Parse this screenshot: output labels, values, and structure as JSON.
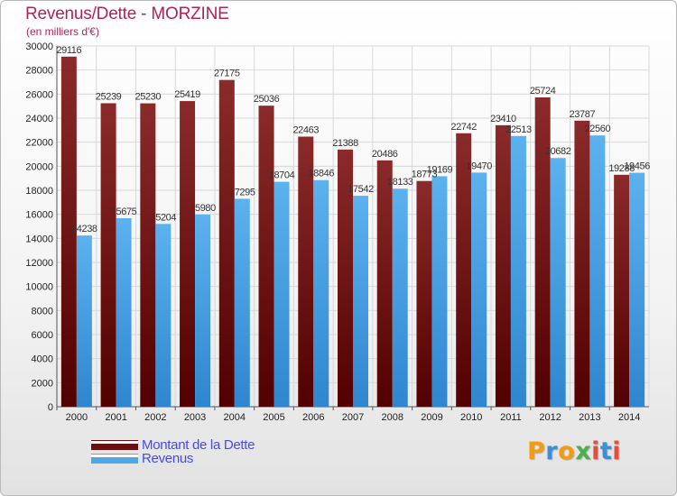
{
  "chart_data": {
    "type": "bar",
    "title": "Revenus/Dette - MORZINE",
    "subtitle": "(en milliers d'€)",
    "xlabel": "",
    "ylabel": "",
    "categories": [
      "2000",
      "2001",
      "2002",
      "2003",
      "2004",
      "2005",
      "2006",
      "2007",
      "2008",
      "2009",
      "2010",
      "2011",
      "2012",
      "2013",
      "2014"
    ],
    "series": [
      {
        "name": "Montant de la Dette",
        "color": "#7a1a1a",
        "values": [
          29116,
          25239,
          25230,
          25419,
          27175,
          25036,
          22463,
          21388,
          20486,
          18773,
          22742,
          23410,
          25724,
          23787,
          19288
        ]
      },
      {
        "name": "Revenus",
        "color": "#4fa8e6",
        "values": [
          14238,
          15675,
          15204,
          15980,
          17295,
          18704,
          18846,
          17542,
          18133,
          19169,
          19470,
          22513,
          20682,
          22560,
          19456
        ]
      }
    ],
    "ylim": [
      0,
      30000
    ],
    "yticks": [
      0,
      2000,
      4000,
      6000,
      8000,
      10000,
      12000,
      14000,
      16000,
      18000,
      20000,
      22000,
      24000,
      26000,
      28000,
      30000
    ],
    "grid": true,
    "legend_position": "bottom-left"
  },
  "logo": {
    "letters": [
      "P",
      "r",
      "o",
      "x",
      "i",
      "t",
      "i"
    ],
    "colors": [
      "#f39c12",
      "#3a8fd6",
      "#f39c12",
      "#4cae4c",
      "#e84c3d",
      "#3a8fd6",
      "#e84c3d"
    ]
  }
}
